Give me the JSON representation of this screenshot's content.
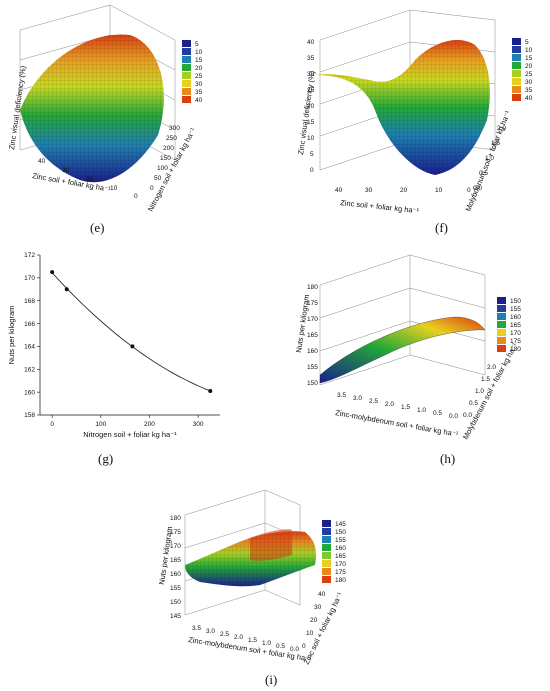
{
  "colors": {
    "scale_low": "#1a1f8c",
    "scale_mid": "#20a830",
    "scale_high": "#e8d020",
    "scale_top": "#e04010",
    "frame": "#444444",
    "grid": "#bbbbbb"
  },
  "panels": {
    "e": {
      "caption": "(e)",
      "zlabel": "Zinc visual deficiency (%)",
      "xlabel": "Zinc  soil + foliar kg ha⁻¹",
      "ylabel": "Nitrogen soil + foliar kg ha⁻¹",
      "x_ticks": [
        "40",
        "30",
        "20",
        "10",
        "0"
      ],
      "y_ticks": [
        "0",
        "50",
        "100",
        "150",
        "200",
        "250",
        "300"
      ],
      "legend": [
        "5",
        "10",
        "15",
        "20",
        "25",
        "30",
        "35",
        "40"
      ]
    },
    "f": {
      "caption": "(f)",
      "zlabel": "Zinc visual deficiency (%)",
      "xlabel": "Zinc  soil + foliar kg ha⁻¹",
      "ylabel": "Molybdenum  soil + foliar kg ha⁻¹",
      "z_ticks": [
        "0",
        "5",
        "10",
        "15",
        "20",
        "25",
        "30",
        "35",
        "40"
      ],
      "x_ticks": [
        "40",
        "30",
        "20",
        "10",
        "0"
      ],
      "y_ticks": [
        "0.0",
        "0.5",
        "1.0",
        "1.5",
        "2.0"
      ],
      "legend": [
        "5",
        "10",
        "15",
        "20",
        "25",
        "30",
        "35",
        "40"
      ]
    },
    "g": {
      "caption": "(g)",
      "xlabel": "Nitrogen soil + foliar kg ha⁻¹",
      "ylabel": "Nuts per kilogram",
      "x_ticks": [
        "0",
        "100",
        "200",
        "300"
      ],
      "y_ticks": [
        "158",
        "160",
        "162",
        "164",
        "166",
        "168",
        "170",
        "172"
      ]
    },
    "h": {
      "caption": "(h)",
      "zlabel": "Nuts per kilogram",
      "xlabel": "Zinc-molybdenum  soil + foliar kg ha⁻¹",
      "ylabel": "Molybdenum  soil + foliar kg ha⁻¹",
      "z_ticks": [
        "150",
        "155",
        "160",
        "165",
        "170",
        "175",
        "180"
      ],
      "x_ticks": [
        "3.5",
        "3.0",
        "2.5",
        "2.0",
        "1.5",
        "1.0",
        "0.5",
        "0.0"
      ],
      "y_ticks": [
        "0.0",
        "0.5",
        "1.0",
        "1.5",
        "2.0"
      ],
      "legend": [
        "150",
        "155",
        "160",
        "165",
        "170",
        "175",
        "180"
      ]
    },
    "i": {
      "caption": "(i)",
      "zlabel": "Nuts per kilogram",
      "xlabel": "Zinc-molybdenum  soil + foliar kg ha⁻¹",
      "ylabel": "Zinc  soil + foliar kg ha⁻¹",
      "z_ticks": [
        "145",
        "150",
        "155",
        "160",
        "165",
        "170",
        "175",
        "180"
      ],
      "x_ticks": [
        "3.5",
        "3.0",
        "2.5",
        "2.0",
        "1.5",
        "1.0",
        "0.5",
        "0.0"
      ],
      "y_ticks": [
        "0",
        "10",
        "20",
        "30",
        "40"
      ],
      "legend": [
        "145",
        "150",
        "155",
        "160",
        "165",
        "170",
        "175",
        "180"
      ]
    }
  },
  "chart_data": [
    {
      "type": "area",
      "panel": "e",
      "surface": "3d response surface",
      "zlabel": "Zinc visual deficiency (%)",
      "xlabel": "Zinc  soil + foliar kg ha⁻¹",
      "ylabel": "Nitrogen soil + foliar kg ha⁻¹",
      "xlim": [
        0,
        45
      ],
      "ylim": [
        0,
        300
      ],
      "zlim": [
        0,
        40
      ],
      "legend": [
        5,
        10,
        15,
        20,
        25,
        30,
        35,
        40
      ]
    },
    {
      "type": "area",
      "panel": "f",
      "surface": "3d response surface",
      "zlabel": "Zinc visual deficiency (%)",
      "xlabel": "Zinc  soil + foliar kg ha⁻¹",
      "ylabel": "Molybdenum  soil + foliar kg ha⁻¹",
      "xlim": [
        0,
        45
      ],
      "ylim": [
        0,
        2.2
      ],
      "zlim": [
        0,
        40
      ],
      "legend": [
        5,
        10,
        15,
        20,
        25,
        30,
        35,
        40
      ]
    },
    {
      "type": "line",
      "panel": "g",
      "xlabel": "Nitrogen soil + foliar kg ha⁻¹",
      "ylabel": "Nuts per kilogram",
      "x": [
        0,
        30,
        165,
        325
      ],
      "y": [
        170.5,
        169.0,
        164.0,
        160.1
      ],
      "xlim": [
        -25,
        345
      ],
      "ylim": [
        158,
        172
      ],
      "grid": false
    },
    {
      "type": "area",
      "panel": "h",
      "surface": "3d response surface",
      "zlabel": "Nuts per kilogram",
      "xlabel": "Zinc-molybdenum  soil + foliar kg ha⁻¹",
      "ylabel": "Molybdenum  soil + foliar kg ha⁻¹",
      "xlim": [
        0,
        3.5
      ],
      "ylim": [
        0,
        2.2
      ],
      "zlim": [
        150,
        180
      ],
      "legend": [
        150,
        155,
        160,
        165,
        170,
        175,
        180
      ]
    },
    {
      "type": "area",
      "panel": "i",
      "surface": "3d response surface",
      "zlabel": "Nuts per kilogram",
      "xlabel": "Zinc-molybdenum  soil + foliar kg ha⁻¹",
      "ylabel": "Zinc  soil + foliar kg ha⁻¹",
      "xlim": [
        0,
        3.5
      ],
      "ylim": [
        0,
        45
      ],
      "zlim": [
        145,
        180
      ],
      "legend": [
        145,
        150,
        155,
        160,
        165,
        170,
        175,
        180
      ]
    }
  ]
}
